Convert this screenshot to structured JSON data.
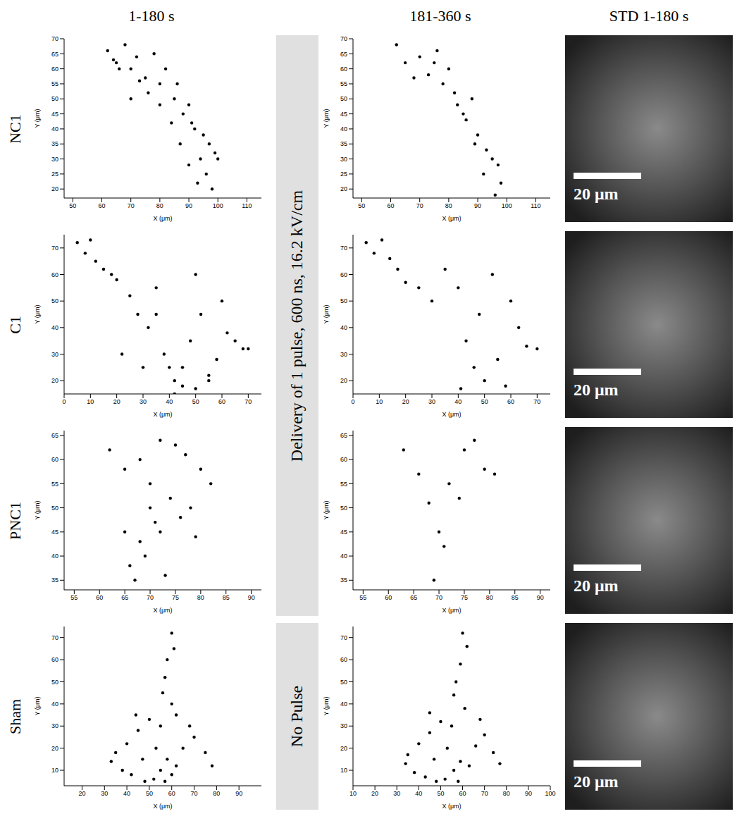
{
  "column_titles": [
    "1-180 s",
    "181-360 s",
    "STD 1-180 s"
  ],
  "row_labels": [
    "NC1",
    "C1",
    "PNC1",
    "Sham"
  ],
  "pulse_labels": [
    "Delivery of 1 pulse, 600 ns, 16.2 kV/cm",
    "No Pulse"
  ],
  "scale_bars": [
    "20 μm",
    "20 μm",
    "20 μm",
    "20 μm"
  ],
  "chart_data": [
    {
      "type": "scatter",
      "x_label": "X (μm)",
      "y_label": "Y (μm)",
      "xlim": [
        47,
        115
      ],
      "ylim": [
        17,
        70
      ],
      "xticks": [
        50,
        60,
        70,
        80,
        90,
        100,
        110
      ],
      "yticks": [
        20,
        25,
        30,
        35,
        40,
        45,
        50,
        55,
        60,
        65,
        70
      ],
      "color": "#000000",
      "marker": "circle",
      "x": [
        62,
        65,
        68,
        70,
        72,
        75,
        78,
        80,
        82,
        85,
        88,
        90,
        92,
        95,
        97,
        99,
        100,
        96,
        93,
        90,
        87,
        84,
        80,
        76,
        73,
        70,
        66,
        64,
        86,
        91,
        94,
        98
      ],
      "values": [
        66,
        62,
        68,
        60,
        64,
        57,
        65,
        55,
        60,
        50,
        45,
        48,
        40,
        38,
        35,
        32,
        30,
        25,
        22,
        28,
        35,
        42,
        48,
        52,
        56,
        50,
        60,
        63,
        55,
        42,
        30,
        20
      ]
    },
    {
      "type": "scatter",
      "x_label": "X (μm)",
      "y_label": "Y (μm)",
      "xlim": [
        47,
        115
      ],
      "ylim": [
        17,
        70
      ],
      "xticks": [
        50,
        60,
        70,
        80,
        90,
        100,
        110
      ],
      "yticks": [
        20,
        25,
        30,
        35,
        40,
        45,
        50,
        55,
        60,
        65,
        70
      ],
      "color": "#000000",
      "marker": "circle",
      "x": [
        62,
        65,
        70,
        73,
        76,
        78,
        80,
        83,
        86,
        88,
        90,
        93,
        95,
        97,
        98,
        96,
        92,
        89,
        85,
        82,
        68,
        75
      ],
      "values": [
        68,
        62,
        64,
        58,
        66,
        55,
        60,
        48,
        43,
        50,
        38,
        33,
        30,
        28,
        22,
        18,
        25,
        35,
        45,
        52,
        57,
        62
      ]
    },
    {
      "type": "scatter",
      "x_label": "X (μm)",
      "y_label": "Y (μm)",
      "xlim": [
        0,
        75
      ],
      "ylim": [
        15,
        75
      ],
      "xticks": [
        0,
        10,
        20,
        30,
        40,
        50,
        60,
        70
      ],
      "yticks": [
        20,
        30,
        40,
        50,
        60,
        70
      ],
      "color": "#000000",
      "marker": "circle",
      "x": [
        5,
        8,
        10,
        12,
        15,
        18,
        20,
        25,
        28,
        32,
        35,
        38,
        40,
        42,
        45,
        48,
        50,
        52,
        55,
        58,
        60,
        62,
        65,
        68,
        70,
        45,
        50,
        55,
        42,
        30,
        22,
        35
      ],
      "values": [
        72,
        68,
        73,
        65,
        62,
        60,
        58,
        52,
        45,
        40,
        55,
        30,
        25,
        20,
        18,
        35,
        60,
        45,
        22,
        28,
        50,
        38,
        35,
        32,
        32,
        25,
        17,
        20,
        15,
        25,
        30,
        45
      ]
    },
    {
      "type": "scatter",
      "x_label": "X (μm)",
      "y_label": "Y (μm)",
      "xlim": [
        0,
        75
      ],
      "ylim": [
        15,
        75
      ],
      "xticks": [
        0,
        10,
        20,
        30,
        40,
        50,
        60,
        70
      ],
      "yticks": [
        20,
        30,
        40,
        50,
        60,
        70
      ],
      "color": "#000000",
      "marker": "circle",
      "x": [
        5,
        8,
        11,
        14,
        17,
        20,
        25,
        30,
        35,
        40,
        43,
        46,
        50,
        53,
        55,
        58,
        60,
        63,
        66,
        70,
        48,
        41
      ],
      "values": [
        72,
        68,
        73,
        66,
        62,
        57,
        55,
        50,
        62,
        55,
        35,
        25,
        20,
        60,
        28,
        18,
        50,
        40,
        33,
        32,
        45,
        17
      ]
    },
    {
      "type": "scatter",
      "x_label": "X (μm)",
      "y_label": "Y (μm)",
      "xlim": [
        53,
        92
      ],
      "ylim": [
        33,
        66
      ],
      "xticks": [
        55,
        60,
        65,
        70,
        75,
        80,
        85,
        90
      ],
      "yticks": [
        35,
        40,
        45,
        50,
        55,
        60,
        65
      ],
      "color": "#000000",
      "marker": "circle",
      "x": [
        62,
        65,
        68,
        70,
        72,
        75,
        77,
        80,
        82,
        78,
        74,
        71,
        68,
        66,
        67,
        69,
        72,
        76,
        79,
        70,
        65,
        73
      ],
      "values": [
        62,
        58,
        60,
        55,
        64,
        63,
        61,
        58,
        55,
        50,
        52,
        47,
        43,
        38,
        35,
        40,
        45,
        48,
        44,
        50,
        45,
        36
      ]
    },
    {
      "type": "scatter",
      "x_label": "X (μm)",
      "y_label": "Y (μm)",
      "xlim": [
        53,
        92
      ],
      "ylim": [
        33,
        66
      ],
      "xticks": [
        55,
        60,
        65,
        70,
        75,
        80,
        85,
        90
      ],
      "yticks": [
        35,
        40,
        45,
        50,
        55,
        60,
        65
      ],
      "color": "#000000",
      "marker": "circle",
      "x": [
        63,
        66,
        68,
        70,
        72,
        75,
        77,
        79,
        81,
        69,
        71,
        74
      ],
      "values": [
        62,
        57,
        51,
        45,
        55,
        62,
        64,
        58,
        57,
        35,
        42,
        52
      ]
    },
    {
      "type": "scatter",
      "x_label": "X (μm)",
      "y_label": "Y (μm)",
      "xlim": [
        12,
        100
      ],
      "ylim": [
        3,
        75
      ],
      "xticks": [
        20,
        30,
        40,
        50,
        60,
        70,
        80,
        90
      ],
      "yticks": [
        10,
        20,
        30,
        40,
        50,
        60,
        70
      ],
      "color": "#000000",
      "marker": "circle",
      "x": [
        60,
        61,
        58,
        57,
        56,
        60,
        62,
        55,
        50,
        45,
        40,
        35,
        33,
        38,
        42,
        48,
        52,
        55,
        58,
        62,
        65,
        70,
        75,
        78,
        68,
        53,
        47,
        57,
        60,
        44
      ],
      "values": [
        72,
        65,
        60,
        52,
        45,
        40,
        35,
        30,
        33,
        28,
        22,
        18,
        14,
        10,
        8,
        5,
        6,
        10,
        15,
        12,
        20,
        25,
        18,
        12,
        30,
        20,
        15,
        5,
        8,
        35
      ]
    },
    {
      "type": "scatter",
      "x_label": "X (μm)",
      "y_label": "Y (μm)",
      "xlim": [
        10,
        100
      ],
      "ylim": [
        3,
        75
      ],
      "xticks": [
        10,
        20,
        30,
        40,
        50,
        60,
        70,
        80,
        90,
        100
      ],
      "yticks": [
        10,
        20,
        30,
        40,
        50,
        60,
        70
      ],
      "color": "#000000",
      "marker": "circle",
      "x": [
        60,
        62,
        59,
        57,
        56,
        61,
        55,
        50,
        45,
        40,
        35,
        34,
        38,
        43,
        48,
        52,
        56,
        59,
        63,
        66,
        70,
        74,
        77,
        68,
        53,
        47,
        58,
        45
      ],
      "values": [
        72,
        66,
        58,
        50,
        44,
        38,
        30,
        32,
        27,
        22,
        17,
        13,
        9,
        7,
        5,
        6,
        10,
        14,
        12,
        21,
        26,
        18,
        13,
        33,
        20,
        15,
        5,
        36
      ]
    }
  ]
}
